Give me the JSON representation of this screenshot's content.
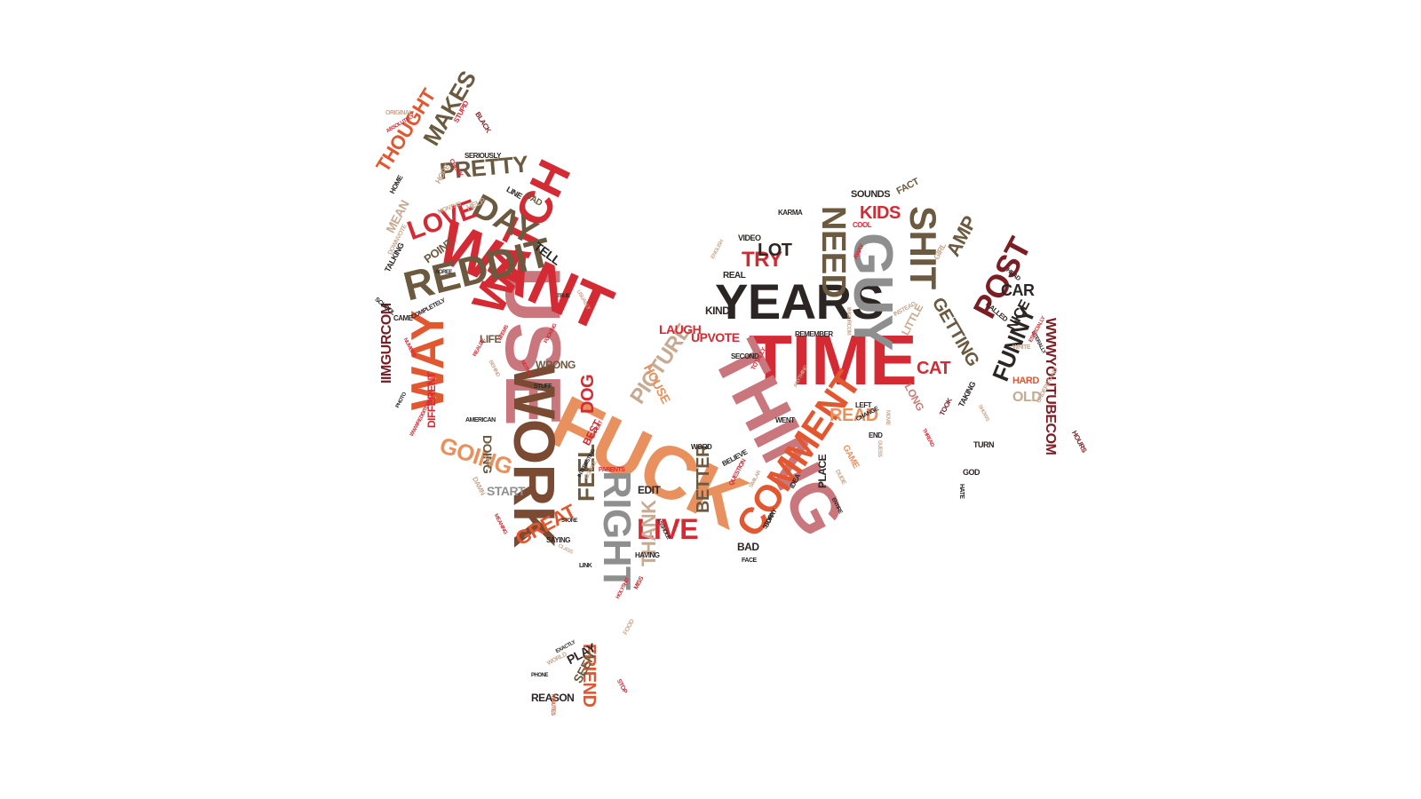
{
  "colors": {
    "red": "#d42a33",
    "dark": "#2b2624",
    "olive": "#6b5a3f",
    "brown": "#7a4a33",
    "maroon": "#7a1e24",
    "orange": "#e2572f",
    "salmon": "#e8915e",
    "pink": "#c9767c",
    "gray": "#8f8f8f",
    "tan": "#c8a991",
    "rosy": "#c47f7a"
  },
  "words": [
    {
      "text": "TIME",
      "color": "red"
    },
    {
      "text": "FUCK",
      "color": "salmon"
    },
    {
      "text": "USE",
      "color": "pink"
    },
    {
      "text": "WANT",
      "color": "red"
    },
    {
      "text": "THING",
      "color": "pink"
    },
    {
      "text": "YEARS",
      "color": "dark"
    },
    {
      "text": "GUY",
      "color": "gray"
    },
    {
      "text": "WORK",
      "color": "brown"
    },
    {
      "text": "WATCH",
      "color": "red"
    },
    {
      "text": "COMMENT",
      "color": "orange"
    },
    {
      "text": "RIGHT",
      "color": "gray"
    },
    {
      "text": "REDDIT",
      "color": "olive"
    },
    {
      "text": "SHIT",
      "color": "olive"
    },
    {
      "text": "WAY",
      "color": "orange"
    },
    {
      "text": "DAY",
      "color": "olive"
    },
    {
      "text": "NEED",
      "color": "olive"
    },
    {
      "text": "LOVE",
      "color": "red"
    },
    {
      "text": "POST",
      "color": "maroon"
    },
    {
      "text": "PRETTY",
      "color": "olive"
    },
    {
      "text": "MAKES",
      "color": "olive"
    },
    {
      "text": "THOUGHT",
      "color": "orange"
    },
    {
      "text": "GOING",
      "color": "salmon"
    },
    {
      "text": "PICTURE",
      "color": "tan"
    },
    {
      "text": "FUNNY",
      "color": "dark"
    },
    {
      "text": "LIVE",
      "color": "red"
    },
    {
      "text": "THANK",
      "color": "tan"
    },
    {
      "text": "FEEL",
      "color": "olive"
    },
    {
      "text": "GETTING",
      "color": "olive"
    },
    {
      "text": "TRY",
      "color": "red"
    },
    {
      "text": "LOT",
      "color": "dark"
    },
    {
      "text": "KIDS",
      "color": "red"
    },
    {
      "text": "AMP",
      "color": "olive"
    },
    {
      "text": "BETTER",
      "color": "olive"
    },
    {
      "text": "IIMGURCOM",
      "color": "maroon"
    },
    {
      "text": "WWWYOUTUBECOM",
      "color": "maroon"
    },
    {
      "text": "FRIEND",
      "color": "orange"
    },
    {
      "text": "GREAT",
      "color": "orange"
    },
    {
      "text": "READ",
      "color": "salmon"
    },
    {
      "text": "CAT",
      "color": "red"
    },
    {
      "text": "CAR",
      "color": "dark"
    },
    {
      "text": "DOG",
      "color": "red"
    },
    {
      "text": "NICE",
      "color": "dark"
    },
    {
      "text": "OLD",
      "color": "tan"
    },
    {
      "text": "START",
      "color": "gray"
    },
    {
      "text": "DOING",
      "color": "olive"
    },
    {
      "text": "LITTLE",
      "color": "tan"
    },
    {
      "text": "LONG",
      "color": "rosy"
    },
    {
      "text": "HOUSE",
      "color": "salmon"
    },
    {
      "text": "TELL",
      "color": "dark"
    },
    {
      "text": "POINT",
      "color": "olive"
    },
    {
      "text": "MEAN",
      "color": "tan"
    },
    {
      "text": "LAUGH",
      "color": "red"
    },
    {
      "text": "UPVOTE",
      "color": "red"
    },
    {
      "text": "KIND",
      "color": "dark"
    },
    {
      "text": "WRONG",
      "color": "olive"
    },
    {
      "text": "LIFE",
      "color": "olive"
    },
    {
      "text": "DIFFERENT",
      "color": "red"
    },
    {
      "text": "PLACE",
      "color": "dark"
    },
    {
      "text": "BAD",
      "color": "dark"
    },
    {
      "text": "EDIT",
      "color": "dark"
    },
    {
      "text": "PLAY",
      "color": "dark"
    },
    {
      "text": "SEEN",
      "color": "olive"
    },
    {
      "text": "REASON",
      "color": "dark"
    },
    {
      "text": "BEST",
      "color": "red"
    },
    {
      "text": "HARD",
      "color": "orange"
    },
    {
      "text": "SOUNDS",
      "color": "dark"
    },
    {
      "text": "FACT",
      "color": "olive"
    },
    {
      "text": "DAD",
      "color": "olive"
    },
    {
      "text": "LINE",
      "color": "dark"
    },
    {
      "text": "HELP",
      "color": "tan"
    },
    {
      "text": "SERIOUSLY",
      "color": "dark"
    },
    {
      "text": "STUPID",
      "color": "red"
    },
    {
      "text": "BLACK",
      "color": "maroon"
    },
    {
      "text": "ORIGINAL",
      "color": "tan"
    },
    {
      "text": "ABSOLUTELY",
      "color": "red"
    },
    {
      "text": "HOPE",
      "color": "tan"
    },
    {
      "text": "CHECK",
      "color": "red"
    },
    {
      "text": "HOME",
      "color": "dark"
    },
    {
      "text": "MONTHS",
      "color": "tan"
    },
    {
      "text": "DOWNVOTE",
      "color": "tan"
    },
    {
      "text": "TALKING",
      "color": "dark"
    },
    {
      "text": "AGREE",
      "color": "dark"
    },
    {
      "text": "SCHOOL",
      "color": "dark"
    },
    {
      "text": "CAME",
      "color": "dark"
    },
    {
      "text": "COMPLETELY",
      "color": "dark"
    },
    {
      "text": "USUALLY",
      "color": "tan"
    },
    {
      "text": "TRUE",
      "color": "dark"
    },
    {
      "text": "VIDEO",
      "color": "dark"
    },
    {
      "text": "KARMA",
      "color": "dark"
    },
    {
      "text": "COOL",
      "color": "red"
    },
    {
      "text": "AWAY",
      "color": "red"
    },
    {
      "text": "REAL",
      "color": "dark"
    },
    {
      "text": "ENGLISH",
      "color": "tan"
    },
    {
      "text": "GIRL",
      "color": "tan"
    },
    {
      "text": "HEAD",
      "color": "dark"
    },
    {
      "text": "CALLED",
      "color": "dark"
    },
    {
      "text": "WHITE",
      "color": "tan"
    },
    {
      "text": "LITERALLY",
      "color": "dark"
    },
    {
      "text": "ESPECIALLY",
      "color": "red"
    },
    {
      "text": "HOURS",
      "color": "maroon"
    },
    {
      "text": "UNDERSTAND",
      "color": "tan"
    },
    {
      "text": "REMEMBER",
      "color": "dark"
    },
    {
      "text": "SECOND",
      "color": "dark"
    },
    {
      "text": "TOTALLY",
      "color": "red"
    },
    {
      "text": "INSTEAD",
      "color": "tan"
    },
    {
      "text": "IIMGURCOM",
      "color": "tan"
    },
    {
      "text": "ANYTHING",
      "color": "tan"
    },
    {
      "text": "WENT",
      "color": "dark"
    },
    {
      "text": "LEFT",
      "color": "dark"
    },
    {
      "text": "CHANGE",
      "color": "dark"
    },
    {
      "text": "MOVIE",
      "color": "tan"
    },
    {
      "text": "END",
      "color": "dark"
    },
    {
      "text": "TOOK",
      "color": "maroon"
    },
    {
      "text": "TAKING",
      "color": "dark"
    },
    {
      "text": "TURN",
      "color": "dark"
    },
    {
      "text": "SHOWS",
      "color": "tan"
    },
    {
      "text": "GOD",
      "color": "dark"
    },
    {
      "text": "HATE",
      "color": "dark"
    },
    {
      "text": "THREAD",
      "color": "red"
    },
    {
      "text": "GUESS",
      "color": "tan"
    },
    {
      "text": "GAME",
      "color": "salmon"
    },
    {
      "text": "DUDE",
      "color": "tan"
    },
    {
      "text": "IDEA",
      "color": "dark"
    },
    {
      "text": "ENTIRE",
      "color": "dark"
    },
    {
      "text": "SORRY",
      "color": "dark"
    },
    {
      "text": "STORY",
      "color": "dark"
    },
    {
      "text": "SIMILAR",
      "color": "tan"
    },
    {
      "text": "QUESTION",
      "color": "red"
    },
    {
      "text": "BELIEVE",
      "color": "dark"
    },
    {
      "text": "WORD",
      "color": "dark"
    },
    {
      "text": "FACE",
      "color": "dark"
    },
    {
      "text": "PARENTS",
      "color": "red"
    },
    {
      "text": "HAVING",
      "color": "dark"
    },
    {
      "text": "ASSHOLE",
      "color": "dark"
    },
    {
      "text": "MISS",
      "color": "red"
    },
    {
      "text": "HOLYSHIT",
      "color": "red"
    },
    {
      "text": "FOOD",
      "color": "tan"
    },
    {
      "text": "STOP",
      "color": "red"
    },
    {
      "text": "MINUTES",
      "color": "orange"
    },
    {
      "text": "WORLD",
      "color": "tan"
    },
    {
      "text": "PHONE",
      "color": "dark"
    },
    {
      "text": "EXACTLY",
      "color": "dark"
    },
    {
      "text": "LINK",
      "color": "dark"
    },
    {
      "text": "CLASS",
      "color": "tan"
    },
    {
      "text": "SAYING",
      "color": "dark"
    },
    {
      "text": "MEANING",
      "color": "red"
    },
    {
      "text": "STORE",
      "color": "dark"
    },
    {
      "text": "DAMN",
      "color": "tan"
    },
    {
      "text": "LOL",
      "color": "tan"
    },
    {
      "text": "INTERESTING",
      "color": "dark"
    },
    {
      "text": "EXPECT",
      "color": "red"
    },
    {
      "text": "COUPLE",
      "color": "tan"
    },
    {
      "text": "STUFF",
      "color": "dark"
    },
    {
      "text": "AMERICAN",
      "color": "dark"
    },
    {
      "text": "REALIZE",
      "color": "red"
    },
    {
      "text": "WWWREDDITCOM",
      "color": "red"
    },
    {
      "text": "PHOTO",
      "color": "dark"
    },
    {
      "text": "NUMBER",
      "color": "red"
    },
    {
      "text": "BEHIND",
      "color": "tan"
    },
    {
      "text": "NOTICE",
      "color": "red"
    },
    {
      "text": "SEEMS",
      "color": "red"
    },
    {
      "text": "FUCKING",
      "color": "red"
    }
  ]
}
